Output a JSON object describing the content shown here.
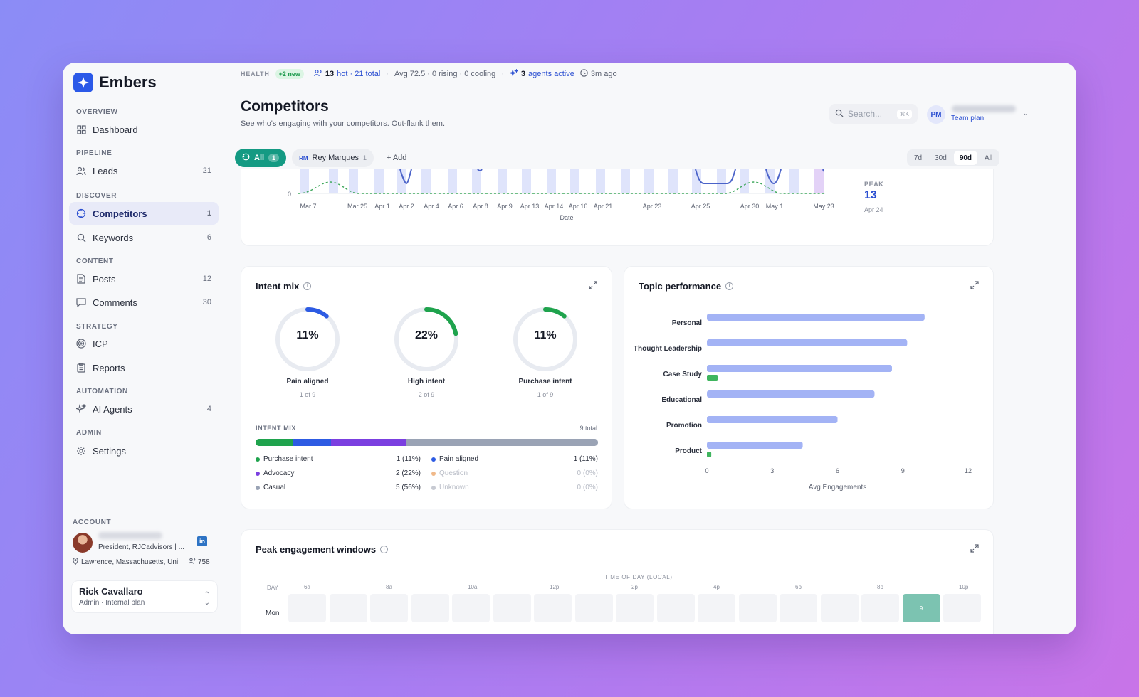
{
  "brand": {
    "name": "Embers"
  },
  "sidebar": {
    "sections": {
      "overview": "OVERVIEW",
      "pipeline": "PIPELINE",
      "discover": "DISCOVER",
      "content": "CONTENT",
      "strategy": "STRATEGY",
      "automation": "AUTOMATION",
      "admin": "ADMIN"
    },
    "items": {
      "dashboard": {
        "label": "Dashboard",
        "count": ""
      },
      "leads": {
        "label": "Leads",
        "count": "21"
      },
      "competitors": {
        "label": "Competitors",
        "count": "1"
      },
      "keywords": {
        "label": "Keywords",
        "count": "6"
      },
      "posts": {
        "label": "Posts",
        "count": "12"
      },
      "comments": {
        "label": "Comments",
        "count": "30"
      },
      "icp": {
        "label": "ICP",
        "count": ""
      },
      "reports": {
        "label": "Reports",
        "count": ""
      },
      "ai_agents": {
        "label": "AI Agents",
        "count": "4"
      },
      "settings": {
        "label": "Settings",
        "count": ""
      }
    },
    "account": {
      "label": "ACCOUNT",
      "title": "President, RJCadvisors | ...",
      "location": "Lawrence, Massachusetts, Uni",
      "followers": "758"
    },
    "user": {
      "name": "Rick Cavallaro",
      "role": "Admin · Internal plan"
    }
  },
  "healthbar": {
    "label": "HEALTH",
    "badge": "+2 new",
    "hot_count": "13",
    "hot_text": "hot · 21 total",
    "avg_text": "Avg 72.5 · 0 rising · 0 cooling",
    "agents_count": "3",
    "agents_text": "agents active",
    "updated": "3m ago"
  },
  "header": {
    "title": "Competitors",
    "subtitle": "See who's engaging with your competitors. Out-flank them.",
    "search_placeholder": "Search...",
    "search_kbd": "⌘K",
    "user_initials": "PM",
    "user_plan": "Team plan"
  },
  "filters": {
    "all_label": "All",
    "all_count": "1",
    "competitor_initials": "RM",
    "competitor_name": "Rey Marques",
    "competitor_count": "1",
    "add_label": "+ Add",
    "ranges": [
      "7d",
      "30d",
      "90d",
      "All"
    ],
    "active_range": "90d"
  },
  "timeline": {
    "zero_label": "0",
    "x_title": "Date",
    "dates": [
      "Mar 7",
      "Mar 25",
      "Apr 1",
      "Apr 2",
      "Apr 4",
      "Apr 6",
      "Apr 8",
      "Apr 9",
      "Apr 13",
      "Apr 14",
      "Apr 16",
      "Apr 21",
      "Apr 23",
      "Apr 25",
      "Apr 30",
      "May 1",
      "May 23"
    ],
    "peak_label": "PEAK",
    "peak_value": "13",
    "peak_date": "Apr 24"
  },
  "intent_mix": {
    "title": "Intent mix",
    "donuts": [
      {
        "value": "11%",
        "label": "Pain aligned",
        "sub": "1 of 9",
        "color": "#2d5be3",
        "fraction": 0.11
      },
      {
        "value": "22%",
        "label": "High intent",
        "sub": "2 of 9",
        "color": "#1fa34d",
        "fraction": 0.22
      },
      {
        "value": "11%",
        "label": "Purchase intent",
        "sub": "1 of 9",
        "color": "#1fa34d",
        "fraction": 0.11
      }
    ],
    "bar_heading": "INTENT MIX",
    "bar_total": "9 total",
    "segments": [
      {
        "name": "Purchase intent",
        "fraction": 0.11,
        "color": "#1fa34d"
      },
      {
        "name": "Pain aligned",
        "fraction": 0.11,
        "color": "#2d5be3"
      },
      {
        "name": "Advocacy",
        "fraction": 0.22,
        "color": "#7b3fe0"
      },
      {
        "name": "Casual",
        "fraction": 0.56,
        "color": "#9aa3b5"
      }
    ],
    "legend": {
      "purchase": {
        "label": "Purchase intent",
        "value": "1 (11%)",
        "color": "#1fa34d"
      },
      "pain": {
        "label": "Pain aligned",
        "value": "1 (11%)",
        "color": "#2d5be3"
      },
      "advocacy": {
        "label": "Advocacy",
        "value": "2 (22%)",
        "color": "#7b3fe0"
      },
      "question": {
        "label": "Question",
        "value": "0 (0%)",
        "color": "#f0b98a"
      },
      "casual": {
        "label": "Casual",
        "value": "5 (56%)",
        "color": "#9aa3b5"
      },
      "unknown": {
        "label": "Unknown",
        "value": "0 (0%)",
        "color": "#c7cad2"
      }
    }
  },
  "chart_data": {
    "type": "bar",
    "title": "Topic performance",
    "categories": [
      "Personal",
      "Thought Leadership",
      "Case Study",
      "Educational",
      "Promotion",
      "Product"
    ],
    "series": [
      {
        "values": [
          10,
          9.2,
          8.5,
          7.7,
          6,
          4.4
        ],
        "color": "#a3b3f5"
      },
      {
        "values": [
          0,
          0,
          0.5,
          0,
          0,
          0.2
        ],
        "color": "#3fb55e"
      }
    ],
    "xlabel": "Avg Engagements",
    "ylabel": "",
    "xlim": [
      0,
      12
    ],
    "ticks": [
      0,
      3,
      6,
      9,
      12
    ],
    "orientation": "horizontal",
    "grid": false
  },
  "peak_windows": {
    "title": "Peak engagement windows",
    "time_label": "TIME OF DAY (LOCAL)",
    "day_label": "DAY",
    "hours": [
      "6a",
      "8a",
      "10a",
      "12p",
      "2p",
      "4p",
      "6p",
      "8p",
      "10p"
    ],
    "days": [
      "Mon"
    ],
    "hot_cell_value": "9"
  }
}
